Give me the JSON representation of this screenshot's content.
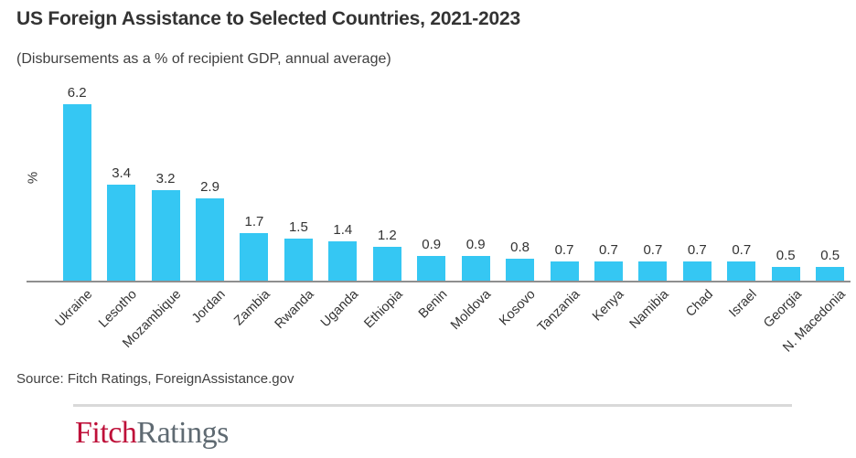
{
  "chart_data": {
    "type": "bar",
    "title": "US Foreign Assistance to Selected Countries, 2021-2023",
    "subtitle": "(Disbursements as a % of recipient GDP, annual average)",
    "xlabel": "",
    "ylabel": "%",
    "categories": [
      "Ukraine",
      "Lesotho",
      "Mozambique",
      "Jordan",
      "Zambia",
      "Rwanda",
      "Uganda",
      "Ethiopia",
      "Benin",
      "Moldova",
      "Kosovo",
      "Tanzania",
      "Kenya",
      "Namibia",
      "Chad",
      "Israel",
      "Georgia",
      "N. Macedonia"
    ],
    "values": [
      6.2,
      3.4,
      3.2,
      2.9,
      1.7,
      1.5,
      1.4,
      1.2,
      0.9,
      0.9,
      0.8,
      0.7,
      0.7,
      0.7,
      0.7,
      0.7,
      0.5,
      0.5
    ],
    "value_labels_shown": true,
    "ylim": [
      0,
      6.9
    ],
    "grid": false,
    "legend": false,
    "bar_color": "#35c7f3",
    "axis_line_color": "#8f8f8f",
    "label_color": "#333333"
  },
  "footer": {
    "source": "Source: Fitch Ratings, ForeignAssistance.gov",
    "logo": {
      "part1": "Fitch",
      "part2": "Ratings",
      "part1_color": "#be1039",
      "part2_color": "#5f6a72"
    }
  }
}
